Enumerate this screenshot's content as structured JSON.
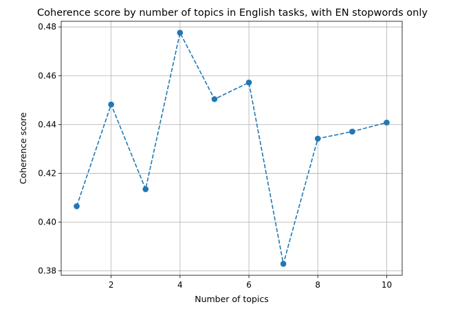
{
  "chart_data": {
    "type": "line",
    "title": "Coherence score by number of topics in English tasks, with EN stopwords only",
    "xlabel": "Number of topics",
    "ylabel": "Coherence score",
    "x": [
      1,
      2,
      3,
      4,
      5,
      6,
      7,
      8,
      9,
      10
    ],
    "series": [
      {
        "values": [
          0.4065,
          0.4482,
          0.4135,
          0.4776,
          0.4504,
          0.4572,
          0.3829,
          0.4342,
          0.4371,
          0.4408
        ],
        "color": "#1f77b4",
        "line_style": "dashed",
        "marker": "circle"
      }
    ],
    "xticks": [
      2,
      4,
      6,
      8,
      10
    ],
    "yticks": [
      0.38,
      0.4,
      0.42,
      0.44,
      0.46,
      0.48
    ],
    "ytick_labels": [
      "0.38",
      "0.40",
      "0.42",
      "0.44",
      "0.46",
      "0.48"
    ],
    "xlim": [
      0.55,
      10.45
    ],
    "ylim": [
      0.3782,
      0.4823
    ],
    "grid": true
  }
}
